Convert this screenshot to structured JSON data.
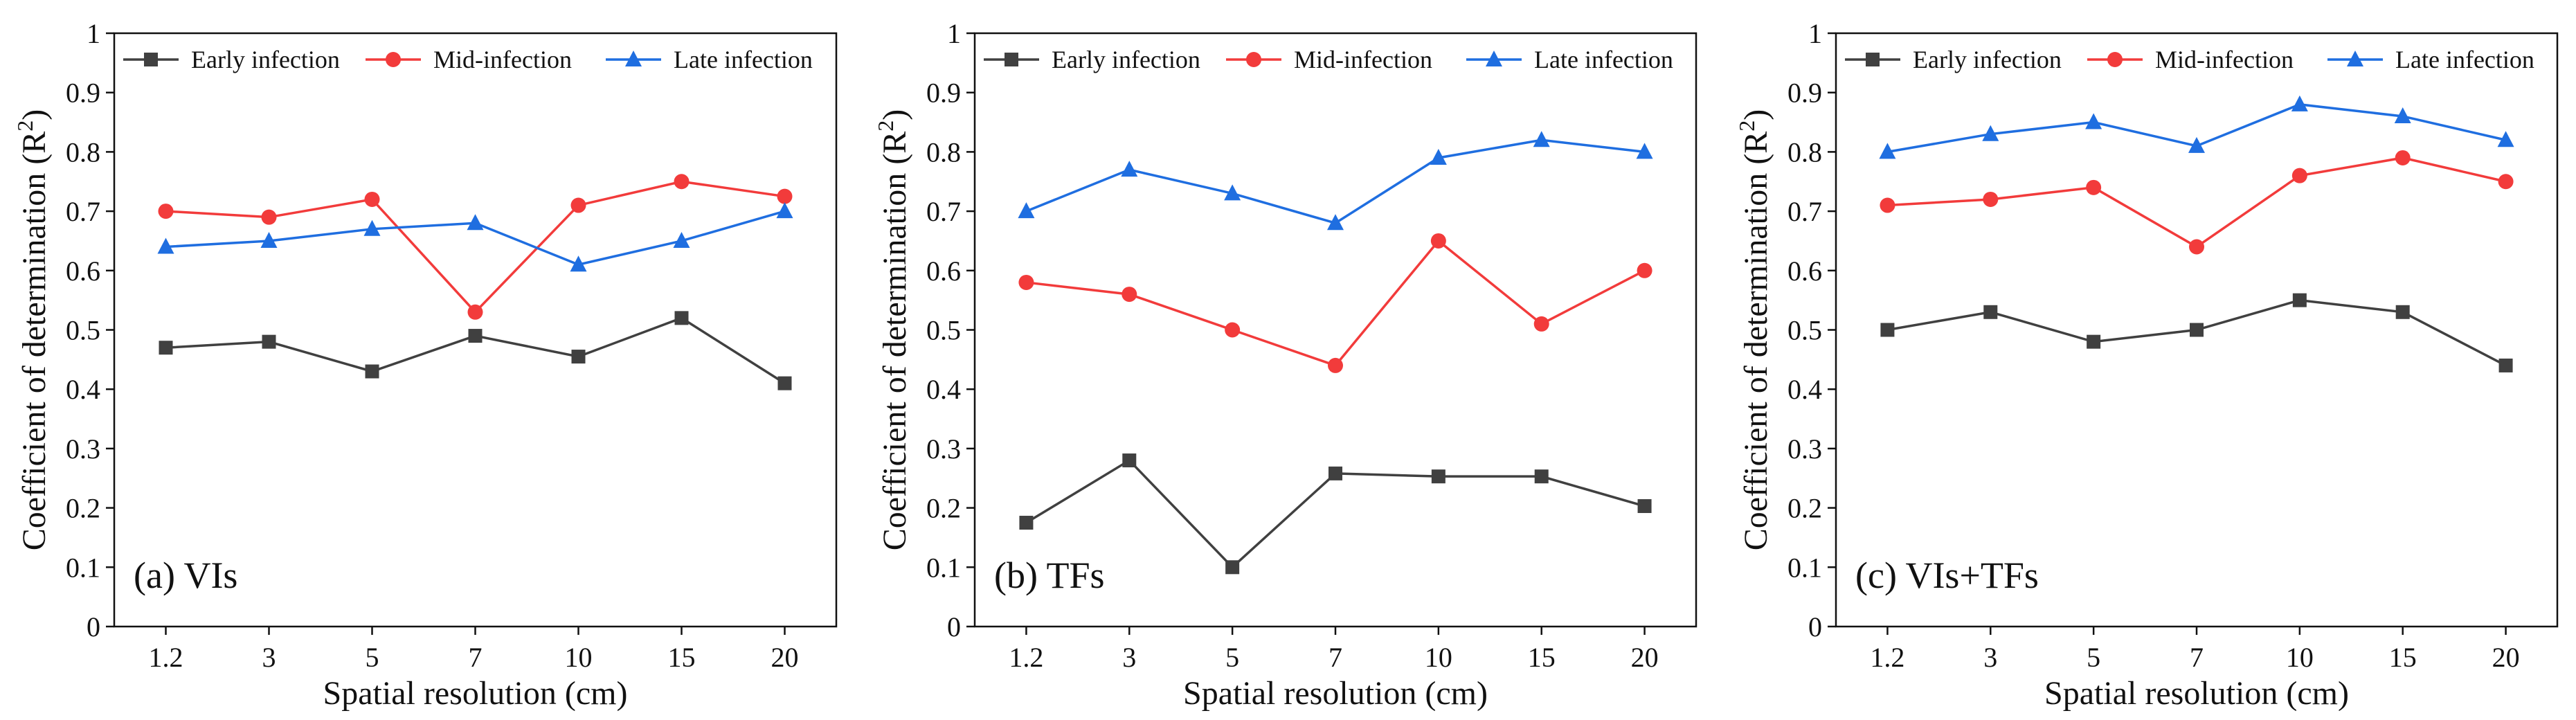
{
  "colors": {
    "early": "#404040",
    "mid": "#f23b3b",
    "late": "#1f6ee0",
    "axis": "#111111"
  },
  "markers": {
    "early": "square",
    "mid": "circle",
    "late": "triangle"
  },
  "chart_data": [
    {
      "type": "line",
      "panel_label": "(a) VIs",
      "xlabel": "Spatial resolution (cm)",
      "ylabel": "Coefficient of determination (R",
      "ylabel_superscript": "2",
      "ylabel_suffix": ")",
      "ylim": [
        0,
        1
      ],
      "yticks": [
        "0",
        "0.1",
        "0.2",
        "0.3",
        "0.4",
        "0.5",
        "0.6",
        "0.7",
        "0.8",
        "0.9",
        "1"
      ],
      "categories": [
        "1.2",
        "3",
        "5",
        "7",
        "10",
        "15",
        "20"
      ],
      "legend_position": "top",
      "series": [
        {
          "key": "early",
          "name": "Early infection",
          "values": [
            0.47,
            0.48,
            0.43,
            0.49,
            0.455,
            0.52,
            0.41
          ]
        },
        {
          "key": "mid",
          "name": "Mid-infection",
          "values": [
            0.7,
            0.69,
            0.72,
            0.53,
            0.71,
            0.75,
            0.725
          ]
        },
        {
          "key": "late",
          "name": "Late infection",
          "values": [
            0.64,
            0.65,
            0.67,
            0.68,
            0.61,
            0.65,
            0.7
          ]
        }
      ]
    },
    {
      "type": "line",
      "panel_label": "(b) TFs",
      "xlabel": "Spatial resolution (cm)",
      "ylabel": "Coefficient of determination (R",
      "ylabel_superscript": "2",
      "ylabel_suffix": ")",
      "ylim": [
        0,
        1
      ],
      "yticks": [
        "0",
        "0.1",
        "0.2",
        "0.3",
        "0.4",
        "0.5",
        "0.6",
        "0.7",
        "0.8",
        "0.9",
        "1"
      ],
      "categories": [
        "1.2",
        "3",
        "5",
        "7",
        "10",
        "15",
        "20"
      ],
      "legend_position": "top",
      "series": [
        {
          "key": "early",
          "name": "Early infection",
          "values": [
            0.175,
            0.28,
            0.1,
            0.258,
            0.253,
            0.253,
            0.203
          ]
        },
        {
          "key": "mid",
          "name": "Mid-infection",
          "values": [
            0.58,
            0.56,
            0.5,
            0.44,
            0.65,
            0.51,
            0.6
          ]
        },
        {
          "key": "late",
          "name": "Late infection",
          "values": [
            0.7,
            0.77,
            0.73,
            0.68,
            0.79,
            0.82,
            0.8
          ]
        }
      ]
    },
    {
      "type": "line",
      "panel_label": "(c) VIs+TFs",
      "xlabel": "Spatial resolution (cm)",
      "ylabel": "Coefficient of determination (R",
      "ylabel_superscript": "2",
      "ylabel_suffix": ")",
      "ylim": [
        0,
        1
      ],
      "yticks": [
        "0",
        "0.1",
        "0.2",
        "0.3",
        "0.4",
        "0.5",
        "0.6",
        "0.7",
        "0.8",
        "0.9",
        "1"
      ],
      "categories": [
        "1.2",
        "3",
        "5",
        "7",
        "10",
        "15",
        "20"
      ],
      "legend_position": "top",
      "series": [
        {
          "key": "early",
          "name": "Early infection",
          "values": [
            0.5,
            0.53,
            0.48,
            0.5,
            0.55,
            0.53,
            0.44
          ]
        },
        {
          "key": "mid",
          "name": "Mid-infection",
          "values": [
            0.71,
            0.72,
            0.74,
            0.64,
            0.76,
            0.79,
            0.75
          ]
        },
        {
          "key": "late",
          "name": "Late infection",
          "values": [
            0.8,
            0.83,
            0.85,
            0.81,
            0.88,
            0.86,
            0.82
          ]
        }
      ]
    }
  ]
}
